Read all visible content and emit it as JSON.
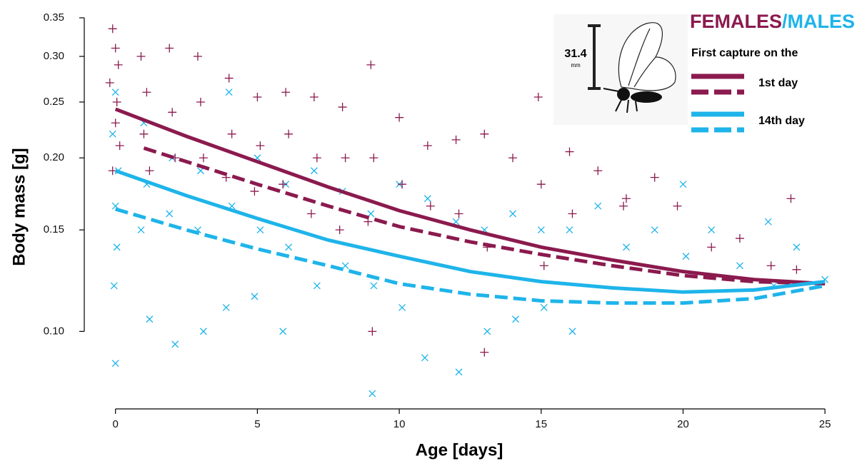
{
  "chart_data": {
    "type": "scatter",
    "x_label": "Age [days]",
    "y_label": "Body mass [g]",
    "log_y": true,
    "xlim": [
      -1.1,
      25.5
    ],
    "ylim": [
      0.074,
      0.357
    ],
    "xticks": [
      0,
      5,
      10,
      15,
      20,
      25
    ],
    "yticks": [
      0.35,
      {
        "value": 0.3,
        "label": "0.30"
      },
      0.25,
      {
        "value": 0.2,
        "label": "0.20"
      },
      0.15,
      {
        "value": 0.1,
        "label": "0.10"
      }
    ],
    "legend_heading": {
      "females": "FEMALES",
      "separator": "/",
      "males": "MALES",
      "females_color": "#8b1a4e",
      "males_color": "#1eb4ea"
    },
    "legend_title": "First capture on the",
    "legend_entries": [
      {
        "label": "1st day",
        "color": "#8b1a4e"
      },
      {
        "label": "14th day",
        "color": "#1eb4ea"
      }
    ],
    "scale_bar": {
      "value": "31.4",
      "unit": "mm"
    },
    "points": [
      {
        "marker": "x",
        "color": "#1eb4ea",
        "x": [
          0,
          -0.1,
          0.1,
          0,
          0.05,
          -0.05,
          0,
          1,
          1.1,
          0.9,
          1.2,
          2,
          1.9,
          2.1,
          3,
          2.9,
          3.1,
          4,
          4.1,
          3.9,
          5,
          5.1,
          4.9,
          6,
          6.1,
          5.9,
          7,
          7.1,
          8,
          8.1,
          9,
          9.1,
          9.05,
          10,
          10.1,
          11,
          10.9,
          12,
          12.1,
          13,
          13.1,
          14,
          14.1,
          15,
          15.1,
          16,
          16.1,
          17,
          18,
          19,
          20,
          20.1,
          21,
          22,
          23,
          23.2,
          24,
          25
        ],
        "values": [
          0.26,
          0.22,
          0.19,
          0.165,
          0.14,
          0.12,
          0.088,
          0.23,
          0.18,
          0.15,
          0.105,
          0.2,
          0.16,
          0.095,
          0.19,
          0.15,
          0.1,
          0.26,
          0.165,
          0.11,
          0.2,
          0.15,
          0.115,
          0.18,
          0.14,
          0.1,
          0.19,
          0.12,
          0.175,
          0.13,
          0.16,
          0.12,
          0.078,
          0.18,
          0.11,
          0.17,
          0.09,
          0.155,
          0.085,
          0.15,
          0.1,
          0.16,
          0.105,
          0.15,
          0.11,
          0.15,
          0.1,
          0.165,
          0.14,
          0.15,
          0.18,
          0.135,
          0.15,
          0.13,
          0.155,
          0.12,
          0.14,
          0.123
        ]
      },
      {
        "marker": "+",
        "color": "#8b1a4e",
        "x": [
          -0.1,
          0,
          0.1,
          -0.2,
          0.05,
          0,
          0.15,
          -0.1,
          0.9,
          1.1,
          1,
          1.2,
          1.9,
          2,
          2.1,
          2.9,
          3,
          3.1,
          4,
          4.1,
          3.9,
          5,
          5.1,
          4.9,
          6,
          6.1,
          5.9,
          7,
          7.1,
          6.9,
          8,
          8.1,
          7.9,
          9,
          9.1,
          8.9,
          10,
          10.1,
          11,
          11.1,
          12,
          12.1,
          13,
          13.1,
          14,
          14.9,
          15,
          16,
          16.1,
          17,
          17.9,
          18,
          19,
          19.8,
          21,
          22,
          23.1,
          23.8,
          24,
          15.1,
          9.05,
          13
        ],
        "values": [
          0.335,
          0.31,
          0.29,
          0.27,
          0.25,
          0.23,
          0.21,
          0.19,
          0.3,
          0.26,
          0.22,
          0.19,
          0.31,
          0.24,
          0.2,
          0.3,
          0.25,
          0.2,
          0.275,
          0.22,
          0.185,
          0.255,
          0.21,
          0.175,
          0.26,
          0.22,
          0.18,
          0.255,
          0.2,
          0.16,
          0.245,
          0.2,
          0.15,
          0.29,
          0.2,
          0.155,
          0.235,
          0.18,
          0.21,
          0.165,
          0.215,
          0.16,
          0.22,
          0.14,
          0.2,
          0.255,
          0.18,
          0.205,
          0.16,
          0.19,
          0.165,
          0.17,
          0.185,
          0.165,
          0.14,
          0.145,
          0.13,
          0.17,
          0.128,
          0.13,
          0.1,
          0.092
        ]
      }
    ],
    "curves": [
      {
        "color": "#8b1a4e",
        "dashed": false,
        "x": [
          0,
          2.5,
          5,
          7.5,
          10,
          12.5,
          15,
          17.5,
          20,
          22.5,
          25
        ],
        "values": [
          0.243,
          0.218,
          0.197,
          0.178,
          0.162,
          0.15,
          0.14,
          0.133,
          0.127,
          0.123,
          0.121
        ]
      },
      {
        "color": "#8b1a4e",
        "dashed": true,
        "x": [
          1,
          2.5,
          5,
          7.5,
          10,
          12.5,
          15,
          17.5,
          20,
          22.5,
          25
        ],
        "values": [
          0.208,
          0.197,
          0.18,
          0.165,
          0.152,
          0.143,
          0.136,
          0.13,
          0.125,
          0.122,
          0.121
        ]
      },
      {
        "color": "#1eb4ea",
        "dashed": false,
        "x": [
          0,
          2.5,
          5,
          7.5,
          10,
          12.5,
          15,
          17.5,
          20,
          22.5,
          25
        ],
        "values": [
          0.19,
          0.172,
          0.157,
          0.144,
          0.135,
          0.127,
          0.122,
          0.119,
          0.117,
          0.118,
          0.122
        ]
      },
      {
        "color": "#1eb4ea",
        "dashed": true,
        "x": [
          0,
          2.5,
          5,
          7.5,
          10,
          12.5,
          15,
          17.5,
          20,
          22.5,
          25
        ],
        "values": [
          0.163,
          0.15,
          0.139,
          0.13,
          0.121,
          0.116,
          0.113,
          0.112,
          0.112,
          0.114,
          0.12
        ]
      }
    ]
  }
}
